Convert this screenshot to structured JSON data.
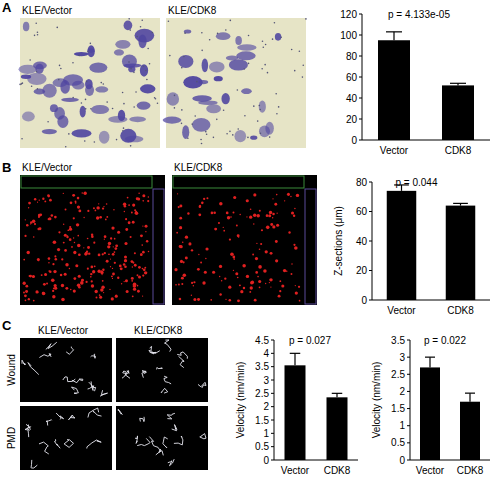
{
  "panels": [
    {
      "letter": "A",
      "image_labels": [
        "KLE/Vector",
        "KLE/CDK8"
      ]
    },
    {
      "letter": "B",
      "image_labels": [
        "KLE/Vector",
        "KLE/CDK8"
      ]
    },
    {
      "letter": "C",
      "image_labels": [
        "KLE/Vector",
        "KLE/CDK8"
      ],
      "row_labels": [
        "Wound",
        "PMD"
      ]
    }
  ],
  "chart_data": [
    {
      "type": "bar",
      "categories": [
        "Vector",
        "CDK8"
      ],
      "values": [
        95,
        52
      ],
      "errors": [
        8,
        2
      ],
      "color": "#000000",
      "ylim": [
        0,
        120
      ],
      "yticks": [
        0,
        20,
        40,
        60,
        80,
        100,
        120
      ],
      "annotations": [
        "p = 4.133e-05"
      ]
    },
    {
      "type": "bar",
      "categories": [
        "Vector",
        "CDK8"
      ],
      "values": [
        74,
        64
      ],
      "errors": [
        4,
        1.5
      ],
      "color": "#000000",
      "ylabel": "Z-sections (μm)",
      "ylim": [
        0,
        80
      ],
      "yticks": [
        0,
        20,
        40,
        60,
        80
      ],
      "annotations": [
        "p = 0.044"
      ]
    },
    {
      "type": "bar",
      "categories": [
        "Vector",
        "CDK8"
      ],
      "values": [
        3.55,
        2.35
      ],
      "errors": [
        0.45,
        0.15
      ],
      "color": "#000000",
      "ylabel": "Velocity (nm/min)",
      "ylim": [
        0,
        4.5
      ],
      "yticks": [
        0,
        0.5,
        1,
        1.5,
        2,
        2.5,
        3,
        3.5,
        4,
        4.5
      ],
      "annotations": [
        "p = 0.027"
      ]
    },
    {
      "type": "bar",
      "categories": [
        "Vector",
        "CDK8"
      ],
      "values": [
        2.7,
        1.7
      ],
      "errors": [
        0.3,
        0.25
      ],
      "color": "#000000",
      "ylabel": "Velocity (nm/min)",
      "ylim": [
        0,
        3.5
      ],
      "yticks": [
        0,
        0.5,
        1,
        1.5,
        2,
        2.5,
        3,
        3.5
      ],
      "annotations": [
        "p = 0.022"
      ]
    }
  ]
}
